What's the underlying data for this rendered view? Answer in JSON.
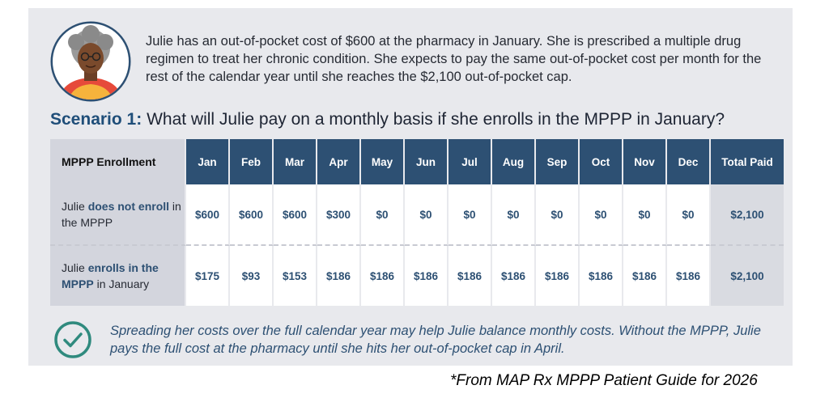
{
  "intro_text": "Julie has an out-of-pocket cost of $600 at the pharmacy in January. She is prescribed a multiple drug regimen to treat her chronic condition. She expects to pay the same out-of-pocket cost per month for the rest of the calendar year until she reaches the $2,100 out-of-pocket cap.",
  "scenario": {
    "label": "Scenario 1:",
    "question": "What will Julie pay on a monthly basis if she enrolls in the MPPP in January?"
  },
  "table": {
    "row_header": "MPPP Enrollment",
    "months": [
      "Jan",
      "Feb",
      "Mar",
      "Apr",
      "May",
      "Jun",
      "Jul",
      "Aug",
      "Sep",
      "Oct",
      "Nov",
      "Dec"
    ],
    "total_header": "Total Paid",
    "rows": [
      {
        "label_pre": "Julie",
        "label_em": "does not enroll",
        "label_post": "in the MPPP",
        "values": [
          "$600",
          "$600",
          "$600",
          "$300",
          "$0",
          "$0",
          "$0",
          "$0",
          "$0",
          "$0",
          "$0",
          "$0"
        ],
        "total": "$2,100"
      },
      {
        "label_pre": "Julie",
        "label_em": "enrolls in the MPPP",
        "label_post": "in January",
        "values": [
          "$175",
          "$93",
          "$153",
          "$186",
          "$186",
          "$186",
          "$186",
          "$186",
          "$186",
          "$186",
          "$186",
          "$186"
        ],
        "total": "$2,100"
      }
    ]
  },
  "note_text": "Spreading her costs over the full calendar year may help Julie balance monthly costs. Without the MPPP, Julie pays the full cost at the pharmacy until she hits her out-of-pocket cap in April.",
  "source_text": "*From MAP Rx MPPP Patient Guide for 2026",
  "icons": {
    "avatar": "woman-avatar-icon",
    "check": "checkmark-circle-icon"
  },
  "colors": {
    "navy": "#2d5073",
    "panel": "#e8e9ed",
    "rowhead": "#d3d5dd",
    "check": "#2f8a7e"
  }
}
